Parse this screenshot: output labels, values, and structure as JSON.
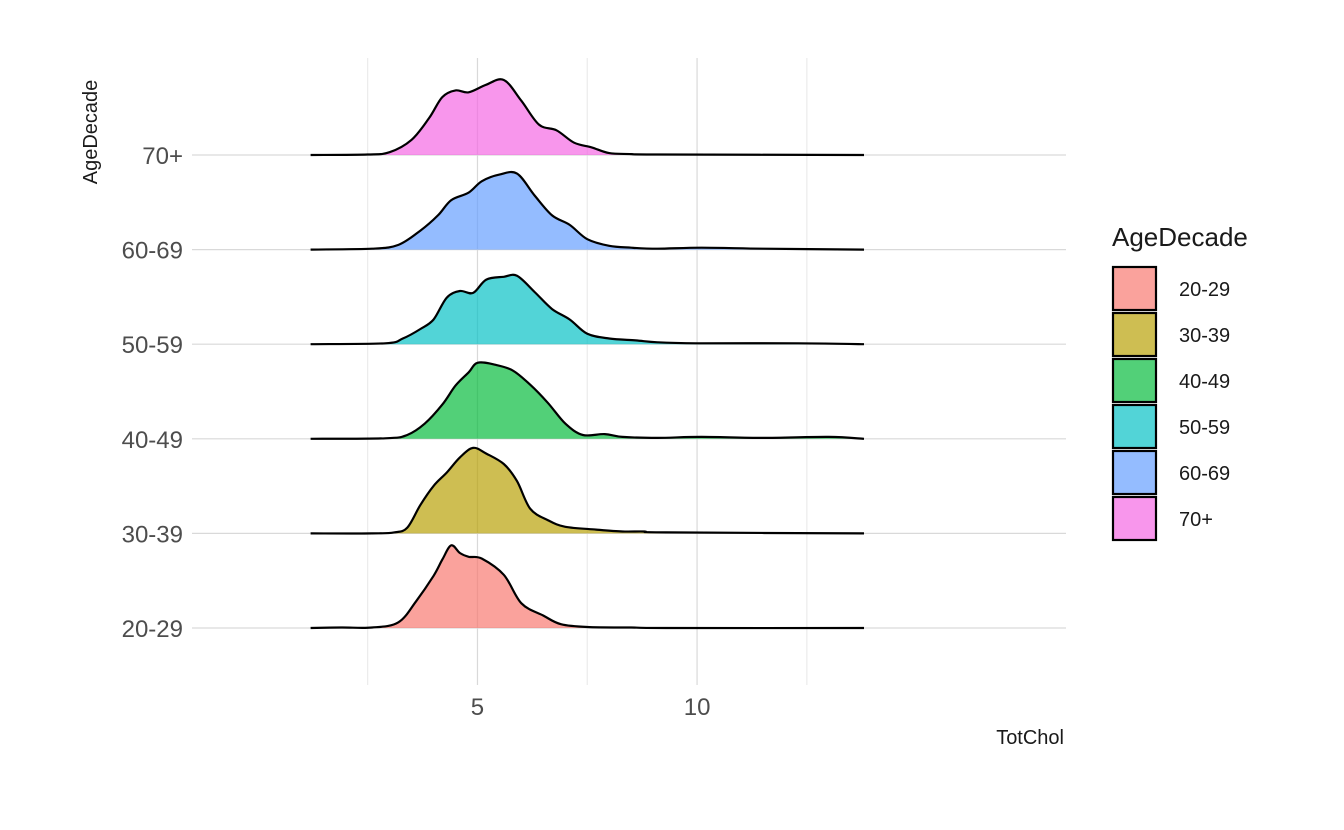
{
  "chart_data": {
    "type": "ridgeline",
    "title": "",
    "xlabel": "TotChol",
    "ylabel": "AgeDecade",
    "xlim": [
      -1.5,
      18.4
    ],
    "x_ticks": [
      5,
      10
    ],
    "x_tick_labels": [
      "5",
      "10"
    ],
    "x_minor_gridlines": [
      2.5,
      7.5,
      12.5
    ],
    "grid": true,
    "legend_title": "AgeDecade",
    "legend_position": "right",
    "series": [
      {
        "name": "20-29",
        "color": "#F8766D",
        "points": [
          [
            1.2,
            0
          ],
          [
            1.9,
            0.005
          ],
          [
            2.6,
            0.005
          ],
          [
            3.2,
            0.06
          ],
          [
            3.6,
            0.28
          ],
          [
            4.0,
            0.55
          ],
          [
            4.2,
            0.72
          ],
          [
            4.4,
            0.87
          ],
          [
            4.6,
            0.79
          ],
          [
            4.8,
            0.75
          ],
          [
            5.1,
            0.73
          ],
          [
            5.6,
            0.56
          ],
          [
            6.0,
            0.26
          ],
          [
            6.5,
            0.13
          ],
          [
            6.9,
            0.04
          ],
          [
            7.5,
            0.01
          ],
          [
            8.5,
            0.005
          ],
          [
            9.3,
            0
          ],
          [
            13.8,
            0
          ]
        ]
      },
      {
        "name": "30-39",
        "color": "#B79F00",
        "points": [
          [
            1.2,
            0
          ],
          [
            2.6,
            0
          ],
          [
            3.1,
            0.01
          ],
          [
            3.4,
            0.06
          ],
          [
            3.7,
            0.3
          ],
          [
            4.0,
            0.5
          ],
          [
            4.3,
            0.64
          ],
          [
            4.6,
            0.8
          ],
          [
            4.9,
            0.9
          ],
          [
            5.2,
            0.84
          ],
          [
            5.6,
            0.73
          ],
          [
            5.9,
            0.55
          ],
          [
            6.2,
            0.26
          ],
          [
            6.6,
            0.14
          ],
          [
            7.0,
            0.07
          ],
          [
            7.7,
            0.04
          ],
          [
            8.3,
            0.02
          ],
          [
            8.8,
            0.02
          ],
          [
            9.3,
            0.01
          ],
          [
            13.8,
            0
          ]
        ]
      },
      {
        "name": "40-49",
        "color": "#00BA38",
        "points": [
          [
            1.2,
            0
          ],
          [
            2.9,
            0.005
          ],
          [
            3.4,
            0.04
          ],
          [
            3.8,
            0.16
          ],
          [
            4.2,
            0.36
          ],
          [
            4.5,
            0.56
          ],
          [
            4.8,
            0.7
          ],
          [
            5.0,
            0.8
          ],
          [
            5.4,
            0.78
          ],
          [
            5.8,
            0.72
          ],
          [
            6.2,
            0.57
          ],
          [
            6.6,
            0.38
          ],
          [
            7.0,
            0.16
          ],
          [
            7.4,
            0.04
          ],
          [
            7.9,
            0.05
          ],
          [
            8.3,
            0.02
          ],
          [
            9.1,
            0.01
          ],
          [
            10.1,
            0.02
          ],
          [
            11.5,
            0.01
          ],
          [
            13.0,
            0.02
          ],
          [
            13.8,
            0
          ]
        ]
      },
      {
        "name": "50-59",
        "color": "#00BFC4",
        "points": [
          [
            1.2,
            0
          ],
          [
            2.9,
            0.01
          ],
          [
            3.3,
            0.06
          ],
          [
            3.7,
            0.16
          ],
          [
            4.0,
            0.26
          ],
          [
            4.3,
            0.49
          ],
          [
            4.6,
            0.56
          ],
          [
            4.9,
            0.54
          ],
          [
            5.2,
            0.68
          ],
          [
            5.6,
            0.71
          ],
          [
            5.9,
            0.72
          ],
          [
            6.3,
            0.55
          ],
          [
            6.7,
            0.37
          ],
          [
            7.1,
            0.26
          ],
          [
            7.5,
            0.11
          ],
          [
            8.0,
            0.06
          ],
          [
            8.6,
            0.04
          ],
          [
            9.1,
            0.02
          ],
          [
            10.0,
            0.01
          ],
          [
            12.3,
            0.01
          ],
          [
            13.8,
            0
          ]
        ]
      },
      {
        "name": "60-69",
        "color": "#619CFF",
        "points": [
          [
            1.2,
            0
          ],
          [
            2.6,
            0.01
          ],
          [
            3.2,
            0.05
          ],
          [
            3.7,
            0.2
          ],
          [
            4.1,
            0.36
          ],
          [
            4.4,
            0.52
          ],
          [
            4.8,
            0.6
          ],
          [
            5.1,
            0.72
          ],
          [
            5.5,
            0.79
          ],
          [
            5.9,
            0.8
          ],
          [
            6.3,
            0.57
          ],
          [
            6.7,
            0.36
          ],
          [
            7.1,
            0.26
          ],
          [
            7.5,
            0.11
          ],
          [
            8.0,
            0.04
          ],
          [
            8.5,
            0.02
          ],
          [
            9.1,
            0.01
          ],
          [
            10.1,
            0.02
          ],
          [
            11.5,
            0.01
          ],
          [
            13.8,
            0
          ]
        ]
      },
      {
        "name": "70+",
        "color": "#F564E3",
        "points": [
          [
            1.2,
            0
          ],
          [
            2.5,
            0.005
          ],
          [
            3.0,
            0.03
          ],
          [
            3.5,
            0.16
          ],
          [
            3.9,
            0.39
          ],
          [
            4.2,
            0.61
          ],
          [
            4.5,
            0.68
          ],
          [
            4.8,
            0.66
          ],
          [
            5.2,
            0.74
          ],
          [
            5.6,
            0.79
          ],
          [
            6.0,
            0.57
          ],
          [
            6.4,
            0.32
          ],
          [
            6.8,
            0.26
          ],
          [
            7.2,
            0.13
          ],
          [
            7.6,
            0.08
          ],
          [
            8.0,
            0.02
          ],
          [
            8.5,
            0.01
          ],
          [
            9.1,
            0.005
          ],
          [
            13.8,
            0
          ]
        ]
      }
    ]
  }
}
